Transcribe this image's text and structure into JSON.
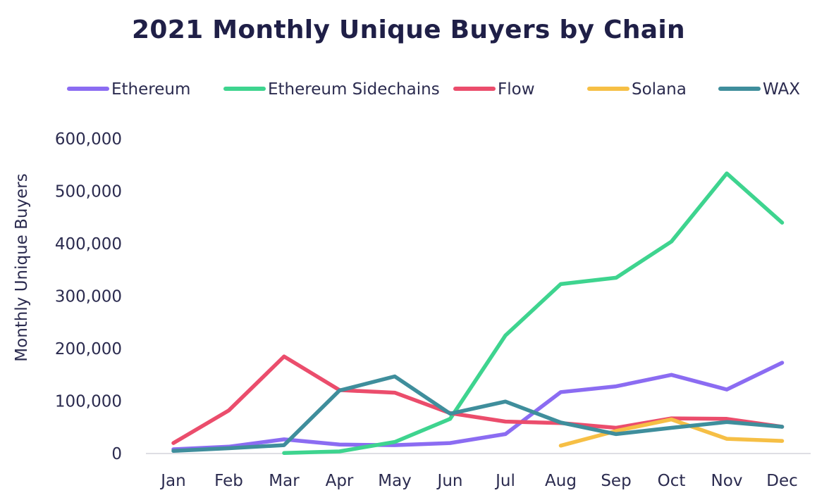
{
  "chart_data": {
    "type": "line",
    "title": "2021 Monthly Unique Buyers by Chain",
    "xlabel": "",
    "ylabel": "Monthly Unique Buyers",
    "categories": [
      "Jan",
      "Feb",
      "Mar",
      "Apr",
      "May",
      "Jun",
      "Jul",
      "Aug",
      "Sep",
      "Oct",
      "Nov",
      "Dec"
    ],
    "ylim": [
      0,
      600000
    ],
    "yticks": [
      0,
      100000,
      200000,
      300000,
      400000,
      500000,
      600000
    ],
    "ytick_labels": [
      "0",
      "100,000",
      "200,000",
      "300,000",
      "400,000",
      "500,000",
      "600,000"
    ],
    "grid": false,
    "legend_position": "top",
    "series": [
      {
        "name": "Ethereum",
        "color": "#8b6cf2",
        "values": [
          8000,
          13000,
          27000,
          17000,
          16000,
          20000,
          37000,
          117000,
          128000,
          150000,
          122000,
          173000
        ]
      },
      {
        "name": "Ethereum Sidechains",
        "color": "#3ed48f",
        "values": [
          null,
          null,
          1000,
          4000,
          22000,
          66000,
          225000,
          323000,
          335000,
          404000,
          534000,
          440000
        ]
      },
      {
        "name": "Flow",
        "color": "#eb4d6c",
        "values": [
          20000,
          82000,
          185000,
          121000,
          116000,
          77000,
          61000,
          58000,
          49000,
          67000,
          66000,
          51000
        ]
      },
      {
        "name": "Solana",
        "color": "#f6bf45",
        "values": [
          null,
          null,
          null,
          null,
          null,
          null,
          null,
          15000,
          43000,
          65000,
          28000,
          24000
        ]
      },
      {
        "name": "WAX",
        "color": "#3f8e9c",
        "values": [
          5000,
          10000,
          16000,
          120000,
          147000,
          76000,
          99000,
          59000,
          37000,
          49000,
          60000,
          51000
        ]
      }
    ]
  }
}
